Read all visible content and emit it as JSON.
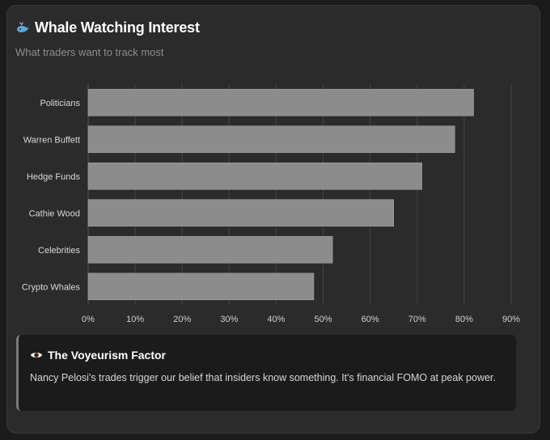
{
  "header": {
    "title": "Whale Watching Interest",
    "subtitle": "What traders want to track most",
    "icon": "whale-icon"
  },
  "chart_data": {
    "type": "bar",
    "orientation": "horizontal",
    "categories": [
      "Politicians",
      "Warren Buffett",
      "Hedge Funds",
      "Cathie Wood",
      "Celebrities",
      "Crypto Whales"
    ],
    "values": [
      82,
      78,
      71,
      65,
      52,
      48
    ],
    "xlim": [
      0,
      90
    ],
    "xticks": [
      "0%",
      "10%",
      "20%",
      "30%",
      "40%",
      "50%",
      "60%",
      "70%",
      "80%",
      "90%"
    ],
    "grid": true,
    "bar_color": "#8c8c8c",
    "grid_color": "#444444"
  },
  "callout": {
    "icon": "eye-icon",
    "title": "The Voyeurism Factor",
    "body": "Nancy Pelosi's trades trigger our belief that insiders know something. It's financial FOMO at peak power."
  },
  "colors": {
    "background": "#1b1b1b",
    "card": "#2b2b2b",
    "text_primary": "#ffffff",
    "text_secondary": "#8d8d8d"
  }
}
